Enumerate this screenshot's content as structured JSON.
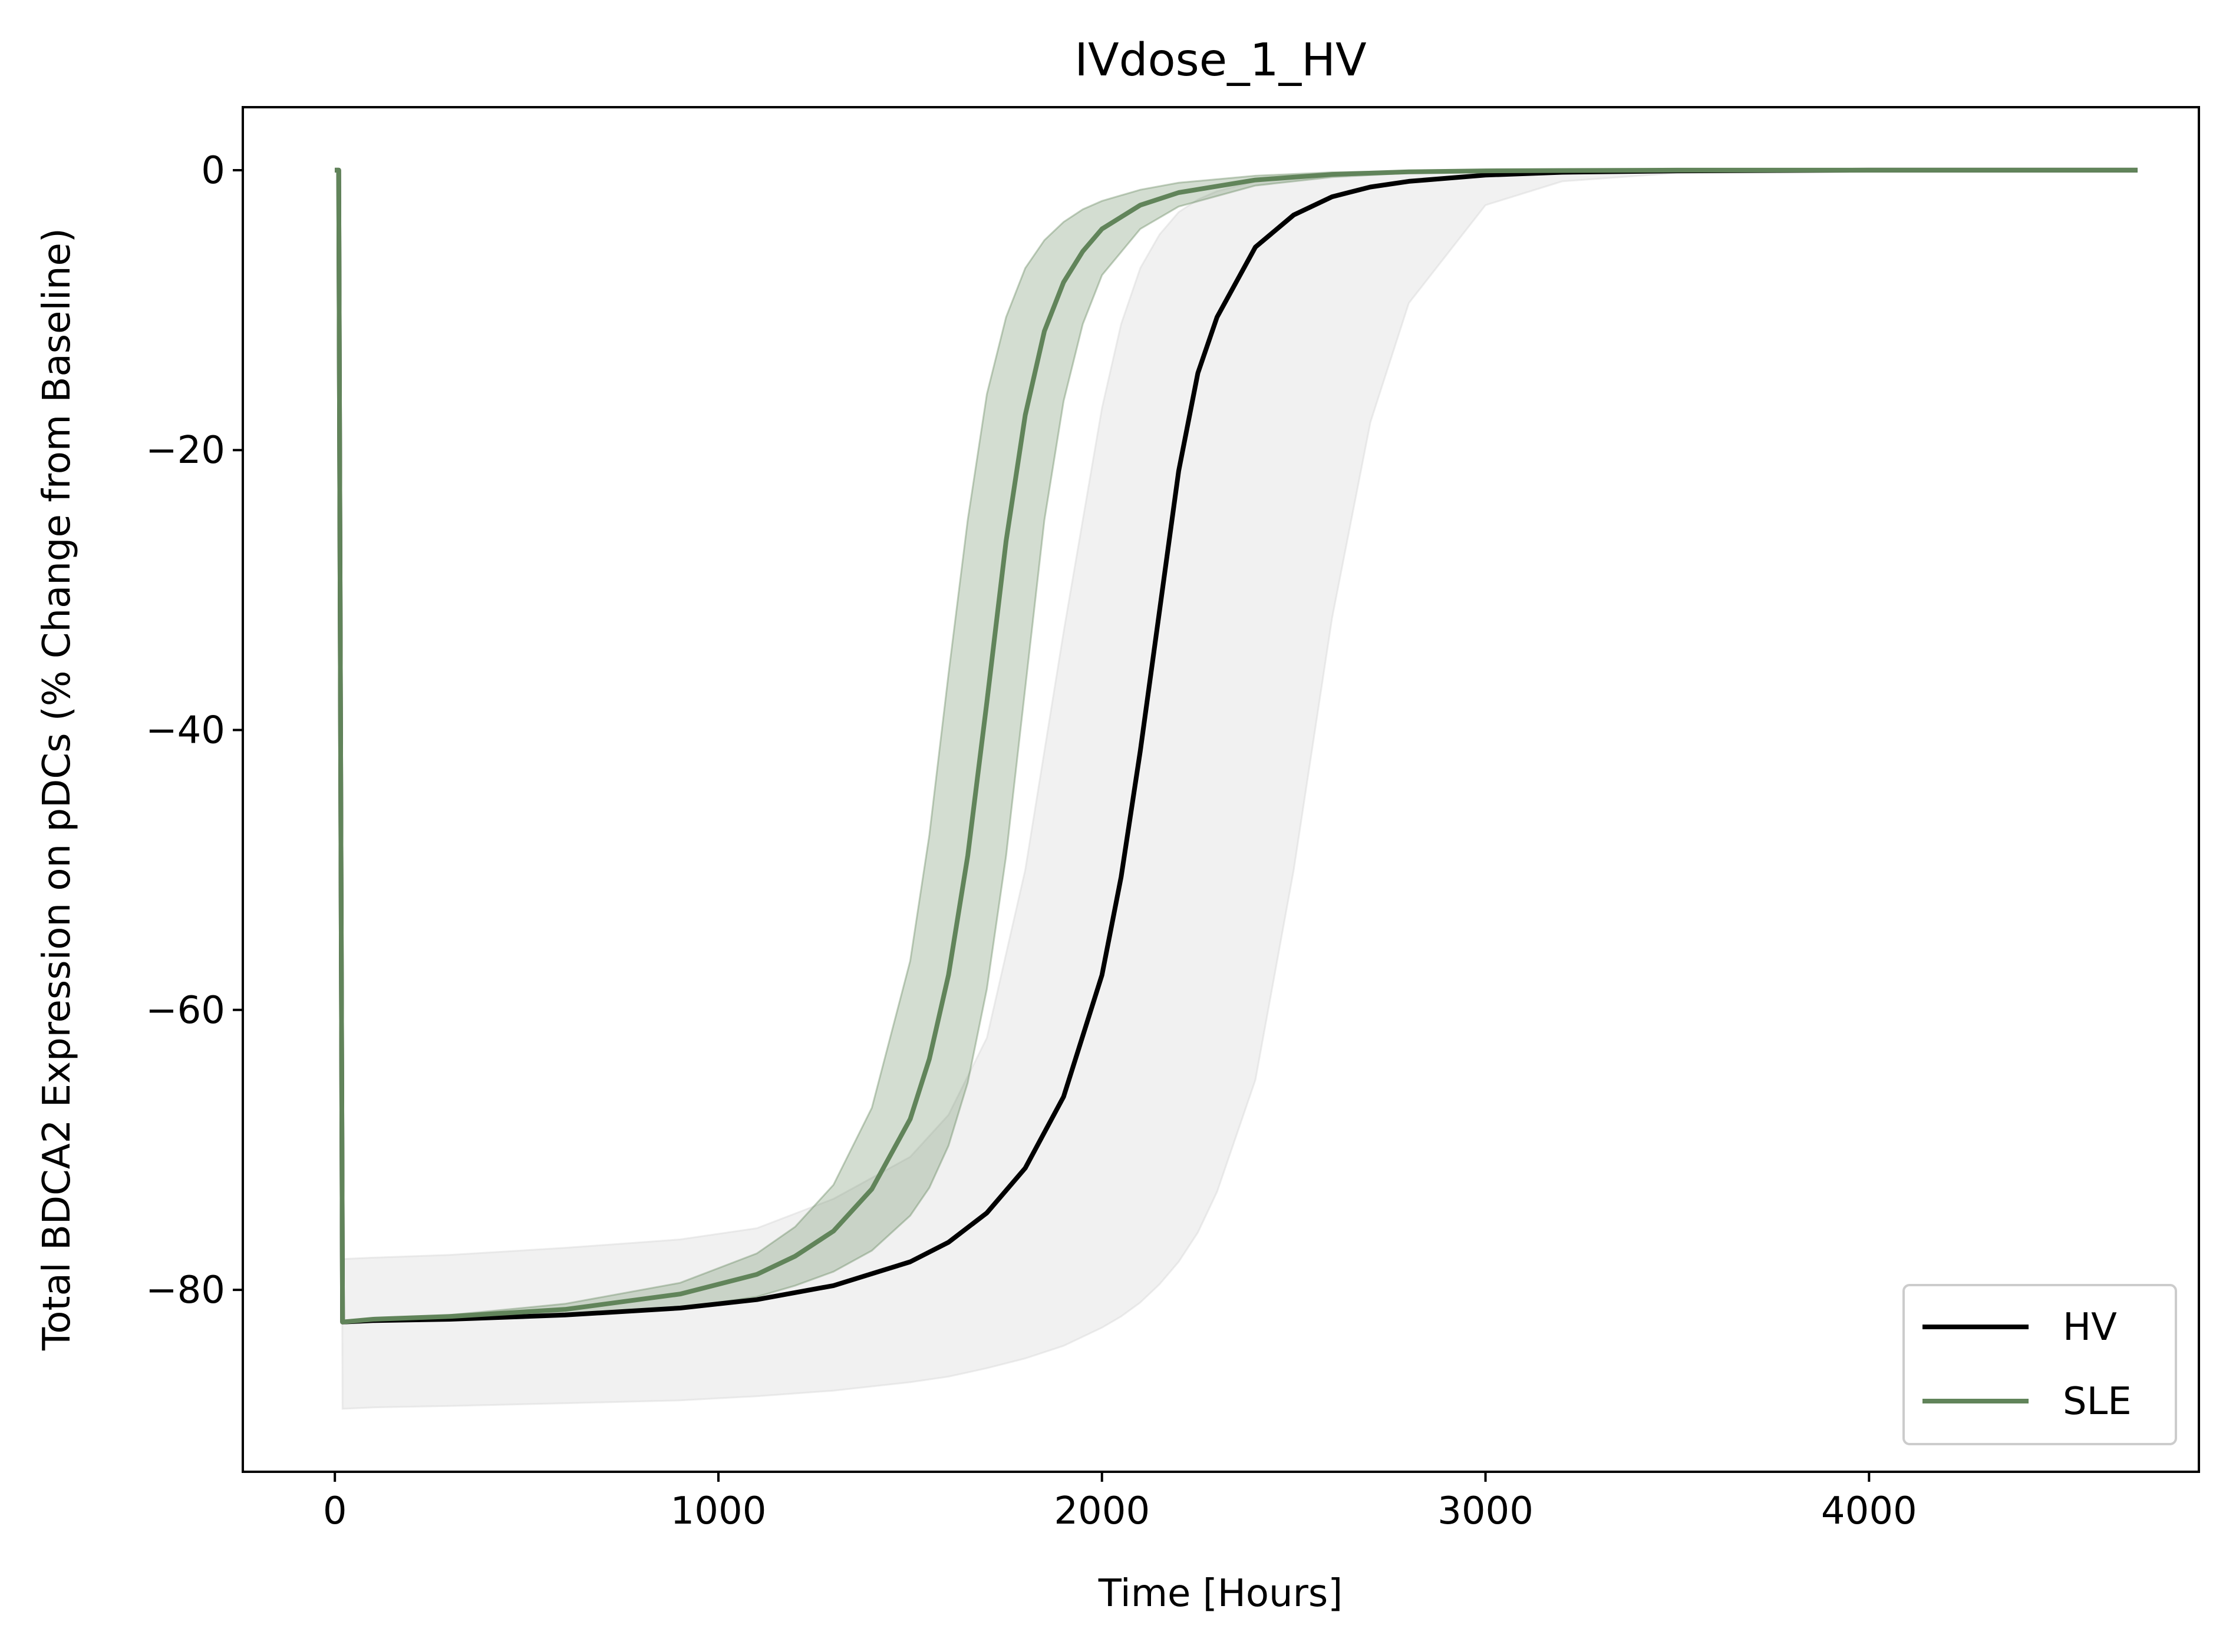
{
  "chart_data": {
    "type": "line",
    "title": "IVdose_1_HV",
    "xlabel": "Time [Hours]",
    "ylabel": "Total BDCA2 Expression on pDCs (% Change from Baseline)",
    "xlim": [
      -240,
      4860
    ],
    "ylim": [
      -93,
      4.5
    ],
    "xticks": [
      0,
      1000,
      2000,
      3000,
      4000
    ],
    "xtick_labels": [
      "0",
      "1000",
      "2000",
      "3000",
      "4000"
    ],
    "yticks": [
      0,
      -20,
      -40,
      -60,
      -80
    ],
    "ytick_labels": [
      "0",
      "−20",
      "−40",
      "−60",
      "−80"
    ],
    "grid": false,
    "legend_position": "bottom-right",
    "series": [
      {
        "name": "HV",
        "color": "#000000",
        "x": [
          0,
          10,
          20,
          100,
          300,
          600,
          900,
          1100,
          1300,
          1500,
          1600,
          1700,
          1800,
          1900,
          2000,
          2050,
          2100,
          2150,
          2200,
          2250,
          2300,
          2400,
          2500,
          2600,
          2700,
          2800,
          3000,
          3200,
          3500,
          4000,
          4500,
          4700
        ],
        "y": [
          0,
          0,
          -82.3,
          -82.2,
          -82.1,
          -81.8,
          -81.3,
          -80.7,
          -79.7,
          -78.0,
          -76.6,
          -74.5,
          -71.3,
          -66.2,
          -57.5,
          -50.5,
          -41.5,
          -31.5,
          -21.5,
          -14.5,
          -10.5,
          -5.5,
          -3.2,
          -1.9,
          -1.2,
          -0.8,
          -0.35,
          -0.15,
          -0.05,
          0,
          0,
          0
        ],
        "band": {
          "color": "#d8d8d8",
          "opacity": 0.35,
          "upper": [
            0,
            0,
            -77.8,
            -77.7,
            -77.5,
            -77.0,
            -76.4,
            -75.6,
            -73.5,
            -70.5,
            -67.5,
            -62.0,
            -50.0,
            -33.0,
            -17.0,
            -11.0,
            -7.0,
            -4.6,
            -3.0,
            -2.1,
            -1.5,
            -0.8,
            -0.45,
            -0.25,
            -0.15,
            -0.1,
            -0.04,
            -0.02,
            0,
            0,
            0,
            0
          ],
          "lower": [
            0,
            0,
            -88.5,
            -88.4,
            -88.3,
            -88.1,
            -87.9,
            -87.6,
            -87.2,
            -86.6,
            -86.2,
            -85.6,
            -84.9,
            -84.0,
            -82.7,
            -81.9,
            -80.9,
            -79.6,
            -78.0,
            -75.9,
            -73.0,
            -65.0,
            -50.0,
            -32.0,
            -18.0,
            -9.5,
            -2.5,
            -0.8,
            -0.2,
            -0.02,
            0,
            0
          ]
        }
      },
      {
        "name": "SLE",
        "color": "#61845a",
        "x": [
          0,
          10,
          20,
          100,
          300,
          600,
          900,
          1100,
          1200,
          1300,
          1400,
          1500,
          1550,
          1600,
          1650,
          1700,
          1750,
          1800,
          1850,
          1900,
          1950,
          2000,
          2100,
          2200,
          2400,
          2600,
          2800,
          3000,
          3500,
          4000,
          4700
        ],
        "y": [
          0,
          0,
          -82.3,
          -82.1,
          -81.9,
          -81.4,
          -80.3,
          -78.9,
          -77.6,
          -75.8,
          -72.8,
          -67.8,
          -63.5,
          -57.5,
          -49.0,
          -38.0,
          -26.5,
          -17.5,
          -11.5,
          -8.0,
          -5.8,
          -4.2,
          -2.5,
          -1.6,
          -0.7,
          -0.3,
          -0.12,
          -0.05,
          0,
          0,
          0
        ],
        "band": {
          "color": "#61845a",
          "opacity": 0.28,
          "upper": [
            0,
            0,
            -82.3,
            -82.1,
            -81.8,
            -81.0,
            -79.5,
            -77.4,
            -75.5,
            -72.5,
            -67.0,
            -56.5,
            -47.5,
            -36.0,
            -25.0,
            -16.0,
            -10.5,
            -7.0,
            -5.0,
            -3.7,
            -2.8,
            -2.2,
            -1.4,
            -0.9,
            -0.4,
            -0.15,
            -0.06,
            -0.02,
            0,
            0,
            0
          ],
          "lower": [
            0,
            0,
            -82.4,
            -82.2,
            -82.0,
            -81.8,
            -81.3,
            -80.5,
            -79.7,
            -78.7,
            -77.2,
            -74.7,
            -72.7,
            -69.7,
            -65.2,
            -58.5,
            -49.0,
            -37.0,
            -25.0,
            -16.5,
            -11.0,
            -7.5,
            -4.2,
            -2.6,
            -1.1,
            -0.5,
            -0.2,
            -0.08,
            0,
            0,
            0
          ]
        }
      }
    ]
  }
}
